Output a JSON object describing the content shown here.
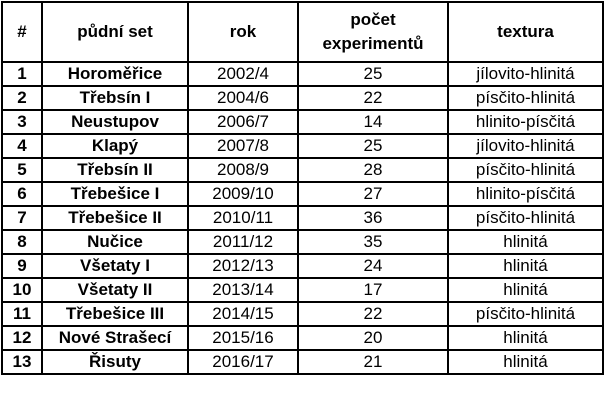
{
  "headers": {
    "num": "#",
    "set": "půdní set",
    "rok": "rok",
    "exp_line1": "počet",
    "exp_line2": "experimentů",
    "tex": "textura"
  },
  "rows": [
    {
      "num": "1",
      "set": "Horoměřice",
      "rok": "2002/4",
      "exp": "25",
      "tex": "jílovito-hlinitá"
    },
    {
      "num": "2",
      "set": "Třebsín I",
      "rok": "2004/6",
      "exp": "22",
      "tex": "písčito-hlinitá"
    },
    {
      "num": "3",
      "set": "Neustupov",
      "rok": "2006/7",
      "exp": "14",
      "tex": "hlinito-písčitá"
    },
    {
      "num": "4",
      "set": "Klapý",
      "rok": "2007/8",
      "exp": "25",
      "tex": "jílovito-hlinitá"
    },
    {
      "num": "5",
      "set": "Třebsín II",
      "rok": "2008/9",
      "exp": "28",
      "tex": "písčito-hlinitá"
    },
    {
      "num": "6",
      "set": "Třebešice I",
      "rok": "2009/10",
      "exp": "27",
      "tex": "hlinito-písčitá"
    },
    {
      "num": "7",
      "set": "Třebešice II",
      "rok": "2010/11",
      "exp": "36",
      "tex": "písčito-hlinitá"
    },
    {
      "num": "8",
      "set": "Nučice",
      "rok": "2011/12",
      "exp": "35",
      "tex": "hlinitá"
    },
    {
      "num": "9",
      "set": "Všetaty I",
      "rok": "2012/13",
      "exp": "24",
      "tex": "hlinitá"
    },
    {
      "num": "10",
      "set": "Všetaty II",
      "rok": "2013/14",
      "exp": "17",
      "tex": "hlinitá"
    },
    {
      "num": "11",
      "set": "Třebešice III",
      "rok": "2014/15",
      "exp": "22",
      "tex": "písčito-hlinitá"
    },
    {
      "num": "12",
      "set": "Nové Strašecí",
      "rok": "2015/16",
      "exp": "20",
      "tex": "hlinitá"
    },
    {
      "num": "13",
      "set": "Řisuty",
      "rok": "2016/17",
      "exp": "21",
      "tex": "hlinitá"
    }
  ]
}
